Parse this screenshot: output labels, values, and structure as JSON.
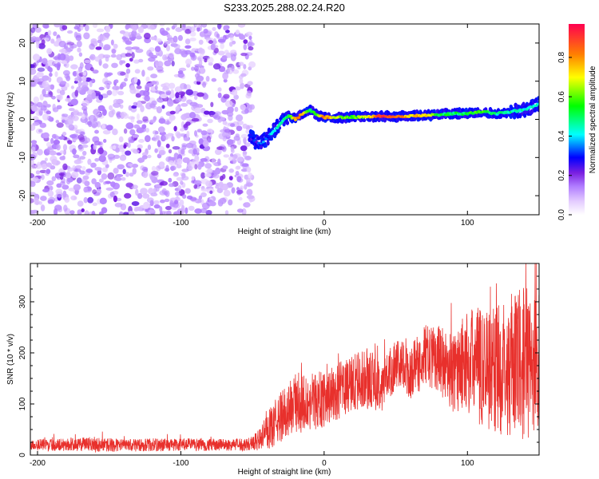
{
  "title": "S233.2025.288.02.24.R20",
  "chart_data": [
    {
      "type": "heatmap",
      "name": "spectrogram",
      "xlabel": "Height of straight line (km)",
      "ylabel": "Frequency (Hz)",
      "xlim": [
        -205,
        150
      ],
      "ylim": [
        -25,
        25
      ],
      "xticks": [
        -200,
        -100,
        0,
        100
      ],
      "yticks": [
        -20,
        -10,
        0,
        10,
        20
      ],
      "colorbar": {
        "label": "Normalized spectral amplitude",
        "range": [
          0,
          0.97
        ],
        "ticks": [
          0.0,
          0.2,
          0.4,
          0.6,
          0.8
        ],
        "tick_labels": [
          "0.0",
          "0.2",
          "0.4",
          "0.6",
          "0.8"
        ],
        "colors": [
          "#ffffff",
          "#c79bff",
          "#8a2be2",
          "#0000ff",
          "#00ffff",
          "#00ff00",
          "#ffff00",
          "#ff8000",
          "#ff0040"
        ]
      },
      "noise_region": {
        "x_range": [
          -205,
          -50
        ],
        "level": 0.12
      },
      "signal_track": {
        "x": [
          -52,
          -45,
          -40,
          -35,
          -30,
          -25,
          -20,
          -15,
          -10,
          -5,
          0,
          10,
          20,
          30,
          40,
          50,
          60,
          70,
          80,
          90,
          100,
          110,
          120,
          130,
          140,
          150
        ],
        "frequency": [
          -4.5,
          -6.5,
          -5,
          -3,
          -1,
          1,
          0,
          1.5,
          2.5,
          1,
          0.5,
          0.5,
          0.6,
          0.7,
          0.8,
          0.8,
          0.9,
          1,
          1.2,
          1.5,
          1.5,
          2,
          1.5,
          2,
          2.5,
          4
        ],
        "amplitude": [
          0.28,
          0.3,
          0.35,
          0.4,
          0.45,
          0.5,
          0.8,
          0.85,
          0.5,
          0.6,
          0.85,
          0.65,
          0.6,
          0.7,
          0.95,
          0.9,
          0.75,
          0.8,
          0.55,
          0.5,
          0.55,
          0.6,
          0.45,
          0.5,
          0.45,
          0.45
        ]
      }
    },
    {
      "type": "line",
      "name": "snr",
      "xlabel": "Height of straight line (km)",
      "ylabel": "SNR (10 * v/v)",
      "xlim": [
        -205,
        150
      ],
      "ylim": [
        0,
        375
      ],
      "xticks": [
        -200,
        -100,
        0,
        100
      ],
      "yticks": [
        0,
        100,
        200,
        300
      ],
      "line_color": "#e8302c",
      "series": [
        {
          "name": "SNR",
          "x": [
            -205,
            -180,
            -160,
            -140,
            -120,
            -100,
            -80,
            -60,
            -52,
            -45,
            -40,
            -35,
            -30,
            -25,
            -20,
            -10,
            0,
            10,
            20,
            30,
            40,
            50,
            60,
            70,
            80,
            90,
            100,
            110,
            120,
            130,
            140,
            150
          ],
          "mean": [
            20,
            20,
            21,
            19,
            20,
            20,
            20,
            20,
            22,
            30,
            45,
            60,
            75,
            90,
            100,
            105,
            110,
            125,
            140,
            150,
            135,
            180,
            160,
            195,
            190,
            160,
            185,
            175,
            170,
            175,
            180,
            180
          ],
          "amplitude": [
            12,
            12,
            15,
            12,
            13,
            13,
            12,
            12,
            14,
            22,
            35,
            45,
            50,
            55,
            60,
            60,
            55,
            55,
            60,
            60,
            50,
            50,
            55,
            60,
            65,
            80,
            100,
            120,
            130,
            140,
            150,
            150
          ],
          "max": 375,
          "min": 5
        }
      ]
    }
  ]
}
